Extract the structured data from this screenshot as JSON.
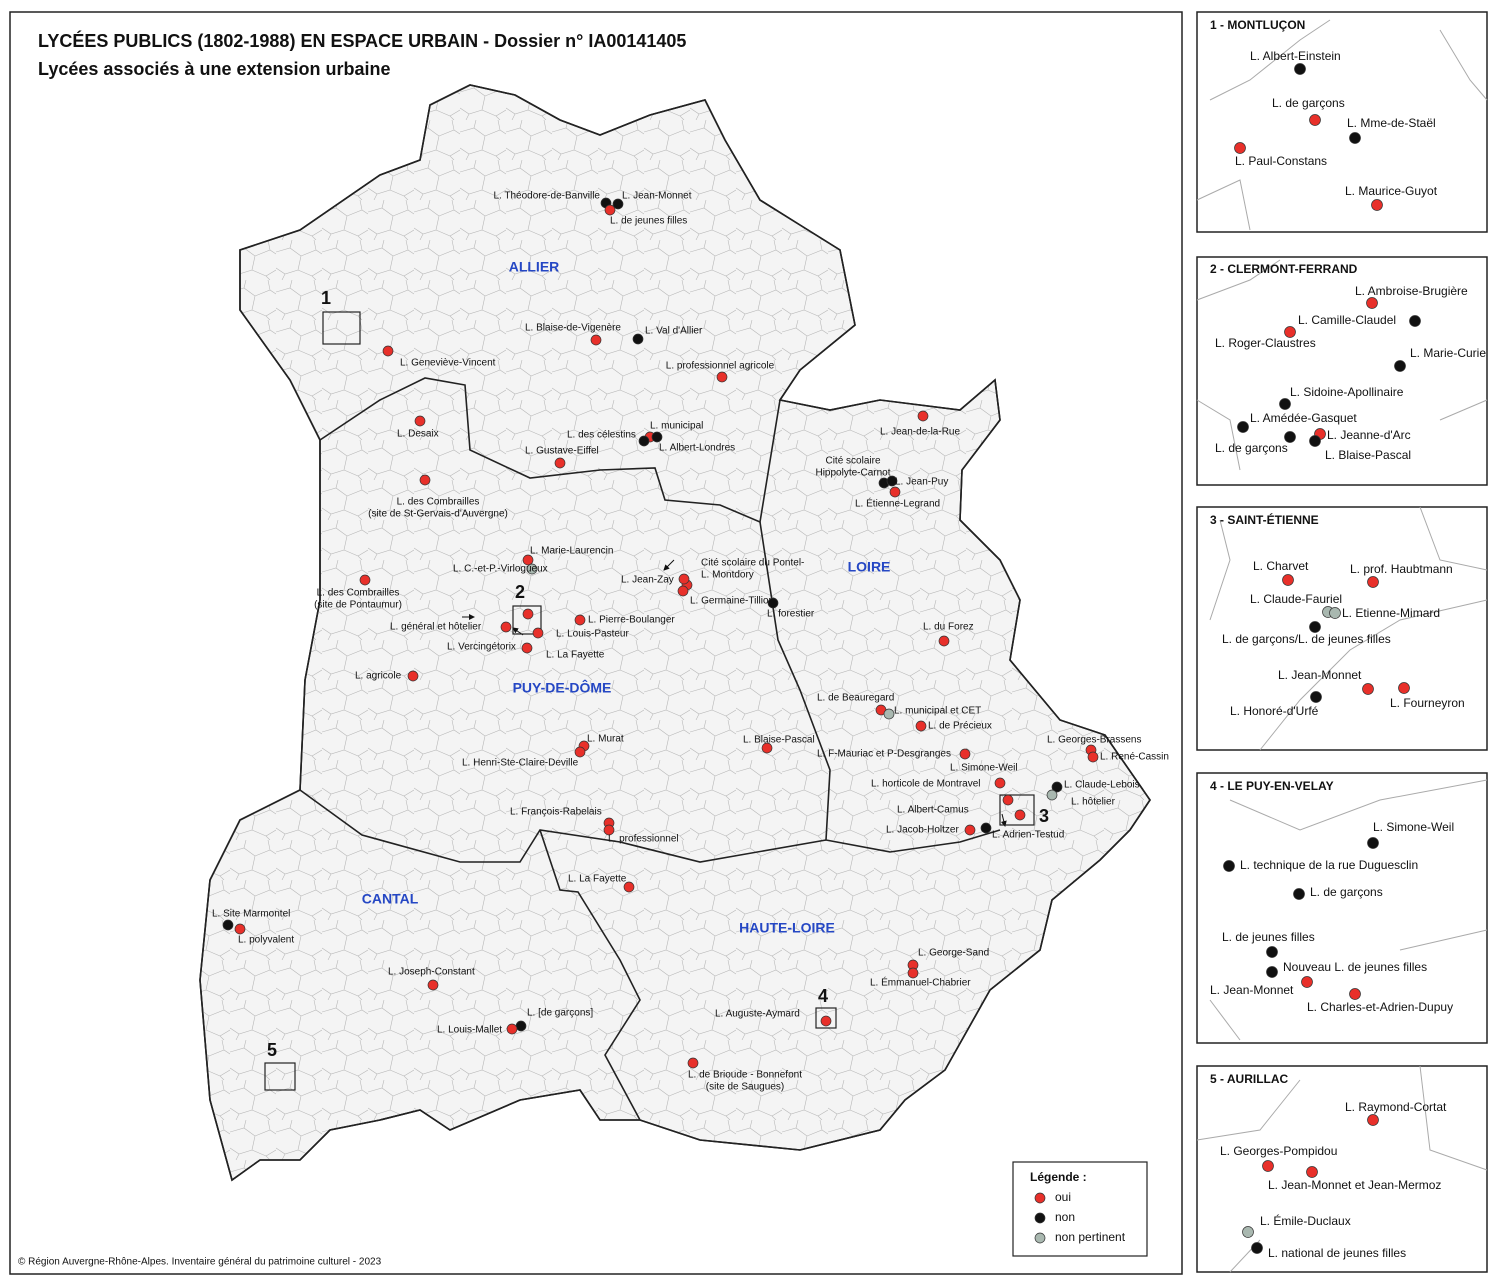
{
  "header": {
    "title": "LYCÉES PUBLICS (1802-1988) EN ESPACE URBAIN - Dossier n° IA00141405",
    "subtitle": "Lycées associés à une extension urbaine"
  },
  "departments": [
    "ALLIER",
    "PUY-DE-DÔME",
    "LOIRE",
    "CANTAL",
    "HAUTE-LOIRE"
  ],
  "zones": [
    "1",
    "2",
    "3",
    "4",
    "5"
  ],
  "lycees": [
    {
      "label": "L. Théodore-de-Banville",
      "status": "non"
    },
    {
      "label": "L. Jean-Monnet",
      "status": "non"
    },
    {
      "label": "L. de jeunes filles",
      "status": "oui"
    },
    {
      "label": "L. Geneviève-Vincent",
      "status": "oui"
    },
    {
      "label": "L. Blaise-de-Vigenère",
      "status": "oui"
    },
    {
      "label": "L. Val d'Allier",
      "status": "non"
    },
    {
      "label": "L. professionnel agricole",
      "status": "oui"
    },
    {
      "label": "L. des célestins",
      "status": "oui"
    },
    {
      "label": "L. municipal",
      "status": "non"
    },
    {
      "label": "L. Albert-Londres",
      "status": "non"
    },
    {
      "label": "L. Gustave-Eiffel",
      "status": "oui"
    },
    {
      "label": "L. Desaix",
      "status": "oui"
    },
    {
      "label": [
        "L. des Combrailles",
        "(site de St-Gervais-d'Auvergne)"
      ],
      "status": "oui"
    },
    {
      "label": "L. Marie-Laurencin",
      "status": "oui"
    },
    {
      "label": "L. C.-et-P.-Virlogueux",
      "status": "non pertinent"
    },
    {
      "label": [
        "L. des Combrailles",
        "(site de Pontaumur)"
      ],
      "status": "oui"
    },
    {
      "label": [
        "Cité scolaire du Pontel-",
        "L. Montdory"
      ],
      "status": "oui"
    },
    {
      "label": "L. Jean-Zay",
      "status": "oui"
    },
    {
      "label": "L. Germaine-Tillion",
      "status": "oui"
    },
    {
      "label": "L. forestier",
      "status": "non"
    },
    {
      "label": "L. Pierre-Boulanger",
      "status": "oui"
    },
    {
      "label": "L. général et hôtelier",
      "status": "oui"
    },
    {
      "label": "L. Louis-Pasteur",
      "status": "oui"
    },
    {
      "label": "L. Vercingétorix",
      "status": "oui"
    },
    {
      "label": "L. La Fayette",
      "status": "oui"
    },
    {
      "label": "L. agricole",
      "status": "oui"
    },
    {
      "label": "L. Murat",
      "status": "oui"
    },
    {
      "label": "L. Henri-Ste-Claire-Deville",
      "status": "oui"
    },
    {
      "label": "L. Blaise-Pascal",
      "status": "oui"
    },
    {
      "label": "L. François-Rabelais",
      "status": "oui"
    },
    {
      "label": "L. professionnel",
      "status": "oui"
    },
    {
      "label": "L. Jean-de-la-Rue",
      "status": "oui"
    },
    {
      "label": [
        "Cité scolaire",
        "Hippolyte-Carnot"
      ],
      "status": "non"
    },
    {
      "label": "L. Jean-Puy",
      "status": "non"
    },
    {
      "label": "L. Étienne-Legrand",
      "status": "oui"
    },
    {
      "label": "L. du Forez",
      "status": "oui"
    },
    {
      "label": "L. de Beauregard",
      "status": "oui"
    },
    {
      "label": "L. municipal et CET",
      "status": "non pertinent"
    },
    {
      "label": "L. de Précieux",
      "status": "oui"
    },
    {
      "label": "L. F-Mauriac et P-Desgranges",
      "status": "oui"
    },
    {
      "label": "L. Georges-Brassens",
      "status": "oui"
    },
    {
      "label": "L. René-Cassin",
      "status": "oui"
    },
    {
      "label": "L. Simone-Weil",
      "status": "oui"
    },
    {
      "label": "L. horticole de Montravel",
      "status": "oui"
    },
    {
      "label": "L. Claude-Lebois",
      "status": "non"
    },
    {
      "label": "L. hôtelier",
      "status": "non pertinent"
    },
    {
      "label": "L. Albert-Camus",
      "status": "oui"
    },
    {
      "label": "L. Jacob-Holtzer",
      "status": "oui"
    },
    {
      "label": "L. Adrien-Testud",
      "status": "non"
    },
    {
      "label": "L. Site Marmontel",
      "status": "non"
    },
    {
      "label": "L. polyvalent",
      "status": "oui"
    },
    {
      "label": "L. Joseph-Constant",
      "status": "oui"
    },
    {
      "label": "L. [de garçons]",
      "status": "non"
    },
    {
      "label": "L. Louis-Mallet",
      "status": "oui"
    },
    {
      "label": "L. La Fayette",
      "status": "oui"
    },
    {
      "label": "L. George-Sand",
      "status": "oui"
    },
    {
      "label": "L. Émmanuel-Chabrier",
      "status": "oui"
    },
    {
      "label": "L. Auguste-Aymard",
      "status": "oui"
    },
    {
      "label": [
        "L. de Brioude - Bonnefont",
        "(site de Saugues)"
      ],
      "status": "oui"
    }
  ],
  "insets": [
    {
      "title": "1 - MONTLUÇON",
      "lycees": [
        {
          "label": "L. Albert-Einstein",
          "status": "non"
        },
        {
          "label": "L. de garçons",
          "status": "oui"
        },
        {
          "label": "L. Mme-de-Staël",
          "status": "non"
        },
        {
          "label": "L. Paul-Constans",
          "status": "oui"
        },
        {
          "label": "L. Maurice-Guyot",
          "status": "oui"
        }
      ]
    },
    {
      "title": "2 - CLERMONT-FERRAND",
      "lycees": [
        {
          "label": "L. Ambroise-Brugière",
          "status": "oui"
        },
        {
          "label": "L. Camille-Claudel",
          "status": "non"
        },
        {
          "label": "L. Roger-Claustres",
          "status": "oui"
        },
        {
          "label": "L. Marie-Curie",
          "status": "non"
        },
        {
          "label": "L. Sidoine-Apollinaire",
          "status": "non"
        },
        {
          "label": "L. Amédée-Gasquet",
          "status": "non"
        },
        {
          "label": "L. Jeanne-d'Arc",
          "status": "oui"
        },
        {
          "label": "L. de garçons",
          "status": "non"
        },
        {
          "label": "L. Blaise-Pascal",
          "status": "non"
        }
      ]
    },
    {
      "title": "3 - SAINT-ÉTIENNE",
      "lycees": [
        {
          "label": "L. Charvet",
          "status": "oui"
        },
        {
          "label": "L. prof. Haubtmann",
          "status": "oui"
        },
        {
          "label": "L. Claude-Fauriel",
          "status": "non pertinent"
        },
        {
          "label": "L. Etienne-Mimard",
          "status": "non pertinent"
        },
        {
          "label": "L. de garçons/L. de jeunes filles",
          "status": "non"
        },
        {
          "label": "L. Jean-Monnet",
          "status": "oui"
        },
        {
          "label": "L. Fourneyron",
          "status": "oui"
        },
        {
          "label": "L. Honoré-d'Urfé",
          "status": "non"
        }
      ]
    },
    {
      "title": "4 - LE PUY-EN-VELAY",
      "lycees": [
        {
          "label": "L. Simone-Weil",
          "status": "non"
        },
        {
          "label": "L. technique de la rue Duguesclin",
          "status": "non"
        },
        {
          "label": "L. de garçons",
          "status": "non"
        },
        {
          "label": "L. de jeunes filles",
          "status": "non"
        },
        {
          "label": "Nouveau L. de jeunes filles",
          "status": "non"
        },
        {
          "label": "L. Jean-Monnet",
          "status": "oui"
        },
        {
          "label": "L. Charles-et-Adrien-Dupuy",
          "status": "oui"
        }
      ]
    },
    {
      "title": "5 - AURILLAC",
      "lycees": [
        {
          "label": "L. Raymond-Cortat",
          "status": "oui"
        },
        {
          "label": "L. Georges-Pompidou",
          "status": "oui"
        },
        {
          "label": "L. Jean-Monnet et Jean-Mermoz",
          "status": "oui"
        },
        {
          "label": "L. Émile-Duclaux",
          "status": "non pertinent"
        },
        {
          "label": "L. national de jeunes filles",
          "status": "non"
        }
      ]
    }
  ],
  "legend": {
    "title": "Légende :",
    "items": [
      {
        "label": "oui",
        "color": "#e8302a"
      },
      {
        "label": "non",
        "color": "#111111"
      },
      {
        "label": "non pertinent",
        "color": "#a9b8b0"
      }
    ]
  },
  "credit": "© Région Auvergne-Rhône-Alpes. Inventaire général du patrimoine culturel - 2023"
}
